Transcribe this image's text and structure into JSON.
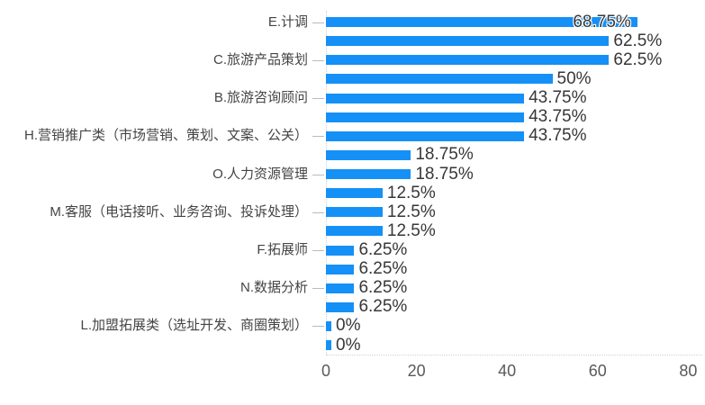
{
  "chart_data": {
    "type": "bar",
    "orientation": "horizontal",
    "title": "",
    "xlabel": "",
    "ylabel": "",
    "xlim": [
      0,
      80
    ],
    "x_ticks": [
      "0",
      "20",
      "40",
      "60",
      "80"
    ],
    "x_tick_values": [
      0,
      20,
      40,
      60,
      80
    ],
    "grid": false,
    "legend_position": "none",
    "bar_color": "#1590F6",
    "value_label_color": "#373737",
    "category_label_color": "#444444",
    "axis_tick_label_color": "#595959",
    "axis_line_color": "#c9d3dd",
    "rows": [
      {
        "label": "E.计调",
        "value": 68.75,
        "display": "68.75%",
        "inside": true
      },
      {
        "label": "",
        "value": 62.5,
        "display": "62.5%"
      },
      {
        "label": "C.旅游产品策划",
        "value": 62.5,
        "display": "62.5%"
      },
      {
        "label": "",
        "value": 50,
        "display": "50%"
      },
      {
        "label": "B.旅游咨询顾问",
        "value": 43.75,
        "display": "43.75%"
      },
      {
        "label": "",
        "value": 43.75,
        "display": "43.75%"
      },
      {
        "label": "H.营销推广类（市场营销、策划、文案、公关）",
        "value": 43.75,
        "display": "43.75%"
      },
      {
        "label": "",
        "value": 18.75,
        "display": "18.75%"
      },
      {
        "label": "O.人力资源管理",
        "value": 18.75,
        "display": "18.75%"
      },
      {
        "label": "",
        "value": 12.5,
        "display": "12.5%"
      },
      {
        "label": "M.客服（电话接听、业务咨询、投诉处理）",
        "value": 12.5,
        "display": "12.5%"
      },
      {
        "label": "",
        "value": 12.5,
        "display": "12.5%"
      },
      {
        "label": "F.拓展师",
        "value": 6.25,
        "display": "6.25%"
      },
      {
        "label": "",
        "value": 6.25,
        "display": "6.25%"
      },
      {
        "label": "N.数据分析",
        "value": 6.25,
        "display": "6.25%"
      },
      {
        "label": "",
        "value": 6.25,
        "display": "6.25%"
      },
      {
        "label": "L.加盟拓展类（选址开发、商圈策划）",
        "value": 0,
        "display": "0%"
      },
      {
        "label": "",
        "value": 0,
        "display": "0%"
      }
    ]
  }
}
